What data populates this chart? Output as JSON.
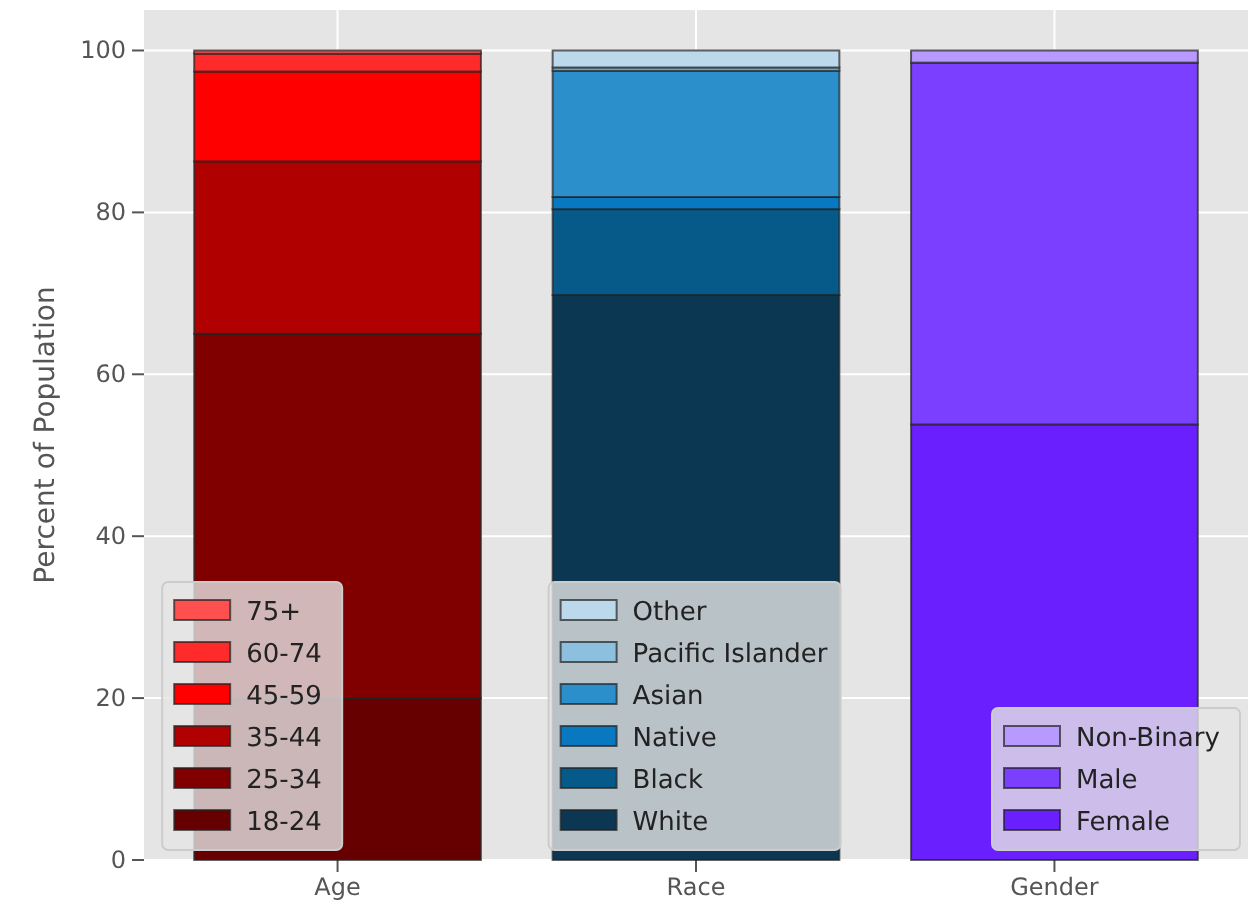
{
  "chart_data": {
    "type": "bar",
    "stacked": true,
    "categories": [
      "Age",
      "Race",
      "Gender"
    ],
    "ylabel": "Percent of Population",
    "ylim": [
      0,
      105
    ],
    "yticks": [
      0,
      20,
      40,
      60,
      80,
      100
    ],
    "grid": true,
    "legend": "bottom",
    "series": [
      {
        "name": "18-24",
        "color": "#660000",
        "values": [
          20,
          null,
          null
        ]
      },
      {
        "name": "25-34",
        "color": "#800000",
        "values": [
          45,
          null,
          null
        ]
      },
      {
        "name": "35-44",
        "color": "#b00000",
        "values": [
          21.3,
          null,
          null
        ]
      },
      {
        "name": "45-59",
        "color": "#ff0000",
        "values": [
          11.1,
          null,
          null
        ]
      },
      {
        "name": "60-74",
        "color": "#ff2a2a",
        "values": [
          2.2,
          null,
          null
        ]
      },
      {
        "name": "75+",
        "color": "#ff5050",
        "values": [
          0.4,
          null,
          null
        ]
      },
      {
        "name": "White",
        "color": "#0b3752",
        "values": [
          null,
          69.8,
          null
        ]
      },
      {
        "name": "Black",
        "color": "#065a8a",
        "values": [
          null,
          10.6,
          null
        ]
      },
      {
        "name": "Native",
        "color": "#0878c0",
        "values": [
          null,
          1.5,
          null
        ]
      },
      {
        "name": "Asian",
        "color": "#2a8fca",
        "values": [
          null,
          15.6,
          null
        ]
      },
      {
        "name": "Pacific Islander",
        "color": "#8cc0de",
        "values": [
          null,
          0.4,
          null
        ]
      },
      {
        "name": "Other",
        "color": "#bcd9ec",
        "values": [
          null,
          2.1,
          null
        ]
      },
      {
        "name": "Female",
        "color": "#6a1fff",
        "values": [
          null,
          null,
          53.8
        ]
      },
      {
        "name": "Male",
        "color": "#7b3fff",
        "values": [
          null,
          null,
          44.7
        ]
      },
      {
        "name": "Non-Binary",
        "color": "#b89aff",
        "values": [
          null,
          null,
          1.5
        ]
      }
    ]
  }
}
